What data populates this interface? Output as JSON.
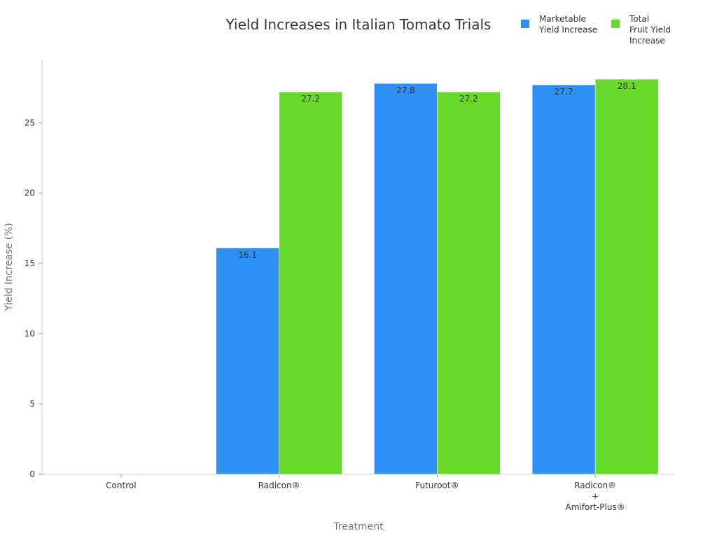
{
  "chart_data": {
    "type": "bar",
    "title": "Yield Increases in Italian Tomato Trials",
    "x_label": "Treatment",
    "y_label": "Yield Increase (%)",
    "categories": [
      "Control",
      "Radicon®",
      "Futuroot®",
      "Radicon®\n+\nAmifort-Plus®"
    ],
    "series": [
      {
        "name": "Marketable\nYield Increase",
        "color": "#2e8ff5",
        "values": [
          null,
          16.1,
          27.8,
          27.7
        ]
      },
      {
        "name": "Total\nFruit Yield\nIncrease",
        "color": "#67d928",
        "values": [
          null,
          27.2,
          27.2,
          28.1
        ]
      }
    ],
    "ylim": [
      0,
      29.5
    ],
    "yticks": [
      0,
      5,
      10,
      15,
      20,
      25
    ],
    "grid": false,
    "legend": "top-right"
  }
}
